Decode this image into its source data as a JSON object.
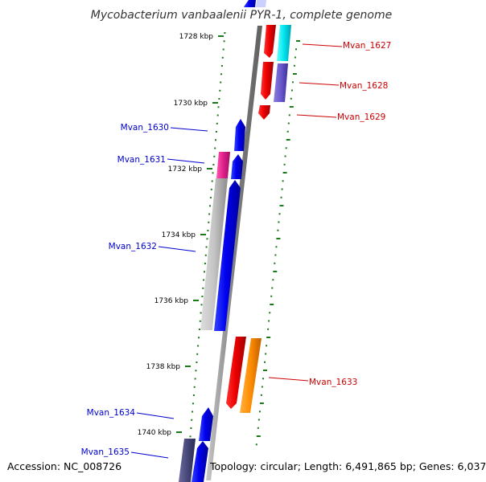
{
  "title": "Mycobacterium vanbaalenii PYR-1, complete genome",
  "footer": {
    "accession": "Accession: NC_008726",
    "summary": "Topology: circular; Length: 6,491,865 bp; Genes: 6,037"
  },
  "ticks": [
    "1728 kbp",
    "1730 kbp",
    "1732 kbp",
    "1734 kbp",
    "1736 kbp",
    "1738 kbp",
    "1740 kbp"
  ],
  "genes": [
    {
      "id": "Mvan_1627",
      "strand": "reverse",
      "color": "#dd0000"
    },
    {
      "id": "Mvan_1628",
      "strand": "reverse",
      "color": "#dd0000"
    },
    {
      "id": "Mvan_1629",
      "strand": "reverse",
      "color": "#dd0000"
    },
    {
      "id": "Mvan_1630",
      "strand": "forward",
      "color": "#0000cc"
    },
    {
      "id": "Mvan_1631",
      "strand": "forward",
      "color": "#0000cc"
    },
    {
      "id": "Mvan_1632",
      "strand": "forward",
      "color": "#0000cc"
    },
    {
      "id": "Mvan_1633",
      "strand": "reverse",
      "color": "#dd0000"
    },
    {
      "id": "Mvan_1634",
      "strand": "forward",
      "color": "#0000cc"
    },
    {
      "id": "Mvan_1635",
      "strand": "forward",
      "color": "#0000cc"
    }
  ],
  "colors": {
    "forward_cds": "#0000ee",
    "reverse_cds": "#ee0000",
    "cyan_feature": "#00e5ee",
    "slate_feature": "#6a5acd",
    "magenta_feature": "#e0208c",
    "orange_feature": "#ff8c00",
    "gray_feature": "#b8b8b8",
    "backbone": "#808080",
    "tick_green": "#1a7a1a"
  }
}
